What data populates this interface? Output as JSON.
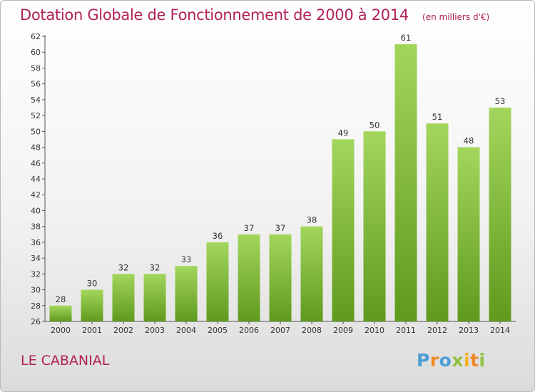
{
  "header": {
    "title": "Dotation Globale de Fonctionnement de 2000 à 2014",
    "unit": "(en milliers d'€)"
  },
  "footer": {
    "commune": "LE CABANIAL",
    "logo": "Proxiti",
    "logo_colors": [
      "#4a9fd6",
      "#f08a24",
      "#8fc23e",
      "#f3b21c"
    ]
  },
  "chart_data": {
    "type": "bar",
    "categories": [
      "2000",
      "2001",
      "2002",
      "2003",
      "2004",
      "2005",
      "2006",
      "2007",
      "2008",
      "2009",
      "2010",
      "2011",
      "2012",
      "2013",
      "2014"
    ],
    "values": [
      28,
      30,
      32,
      32,
      33,
      36,
      37,
      37,
      38,
      49,
      50,
      61,
      51,
      48,
      53
    ],
    "ylim": [
      26,
      62
    ],
    "yticks": [
      26,
      28,
      30,
      32,
      34,
      36,
      38,
      40,
      42,
      44,
      46,
      48,
      50,
      52,
      54,
      56,
      58,
      60,
      62
    ],
    "grid": false,
    "bar_color": "#8cc63f",
    "bar_color_dark": "#5f9a1d"
  }
}
